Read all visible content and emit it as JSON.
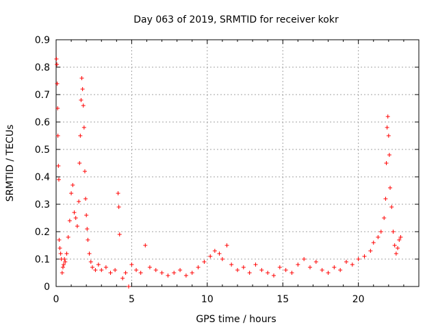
{
  "chart_data": {
    "type": "scatter",
    "title": "Day 063 of 2019, SRMTID for receiver kokr",
    "xlabel": "GPS time / hours",
    "ylabel": "SRMTID / TECUs",
    "xlim": [
      0,
      24
    ],
    "ylim": [
      0,
      0.9
    ],
    "xticks": [
      0,
      5,
      10,
      15,
      20
    ],
    "xtick_labels": [
      "0",
      "5",
      "10",
      "15",
      "20"
    ],
    "yticks": [
      0,
      0.1,
      0.2,
      0.3,
      0.4,
      0.5,
      0.6,
      0.7,
      0.8,
      0.9
    ],
    "ytick_labels": [
      "0",
      "0.1",
      "0.2",
      "0.3",
      "0.4",
      "0.5",
      "0.6",
      "0.7",
      "0.8",
      "0.9"
    ],
    "grid": true,
    "marker": "+",
    "series": [
      {
        "name": "SRMTID",
        "color": "#ff0000",
        "x": [
          0.02,
          0.05,
          0.07,
          0.1,
          0.12,
          0.15,
          0.18,
          0.2,
          0.25,
          0.3,
          0.35,
          0.4,
          0.45,
          0.5,
          0.55,
          0.6,
          0.7,
          0.8,
          0.9,
          1.0,
          1.1,
          1.2,
          1.3,
          1.4,
          1.5,
          1.55,
          1.6,
          1.65,
          1.7,
          1.75,
          1.8,
          1.85,
          1.9,
          1.95,
          2.0,
          2.05,
          2.1,
          2.2,
          2.3,
          2.4,
          2.6,
          2.8,
          3.0,
          3.3,
          3.6,
          3.9,
          4.1,
          4.15,
          4.2,
          4.4,
          4.6,
          4.8,
          5.0,
          5.3,
          5.6,
          5.9,
          6.2,
          6.6,
          7.0,
          7.4,
          7.8,
          8.2,
          8.6,
          9.0,
          9.4,
          9.8,
          10.2,
          10.5,
          10.8,
          11.0,
          11.3,
          11.6,
          12.0,
          12.4,
          12.8,
          13.2,
          13.6,
          14.0,
          14.4,
          14.8,
          15.2,
          15.6,
          16.0,
          16.4,
          16.8,
          17.2,
          17.6,
          18.0,
          18.4,
          18.8,
          19.2,
          19.6,
          20.0,
          20.4,
          20.8,
          21.0,
          21.3,
          21.5,
          21.7,
          21.8,
          21.85,
          21.9,
          21.95,
          22.0,
          22.05,
          22.1,
          22.2,
          22.3,
          22.4,
          22.5,
          22.6,
          22.7,
          22.8
        ],
        "y": [
          0.83,
          0.81,
          0.74,
          0.65,
          0.55,
          0.44,
          0.39,
          0.17,
          0.14,
          0.12,
          0.1,
          0.05,
          0.07,
          0.08,
          0.1,
          0.09,
          0.12,
          0.18,
          0.24,
          0.34,
          0.37,
          0.27,
          0.25,
          0.22,
          0.31,
          0.45,
          0.55,
          0.68,
          0.76,
          0.72,
          0.66,
          0.58,
          0.42,
          0.32,
          0.26,
          0.21,
          0.17,
          0.12,
          0.09,
          0.07,
          0.06,
          0.08,
          0.06,
          0.07,
          0.05,
          0.06,
          0.34,
          0.29,
          0.19,
          0.03,
          0.05,
          0.0,
          0.08,
          0.06,
          0.05,
          0.15,
          0.07,
          0.06,
          0.05,
          0.04,
          0.05,
          0.06,
          0.04,
          0.05,
          0.07,
          0.09,
          0.11,
          0.13,
          0.12,
          0.1,
          0.15,
          0.08,
          0.06,
          0.07,
          0.05,
          0.08,
          0.06,
          0.05,
          0.04,
          0.07,
          0.06,
          0.05,
          0.08,
          0.1,
          0.07,
          0.09,
          0.06,
          0.05,
          0.07,
          0.06,
          0.09,
          0.08,
          0.1,
          0.11,
          0.13,
          0.16,
          0.18,
          0.2,
          0.25,
          0.32,
          0.45,
          0.58,
          0.62,
          0.55,
          0.48,
          0.36,
          0.29,
          0.2,
          0.15,
          0.12,
          0.14,
          0.17,
          0.18
        ]
      }
    ]
  }
}
